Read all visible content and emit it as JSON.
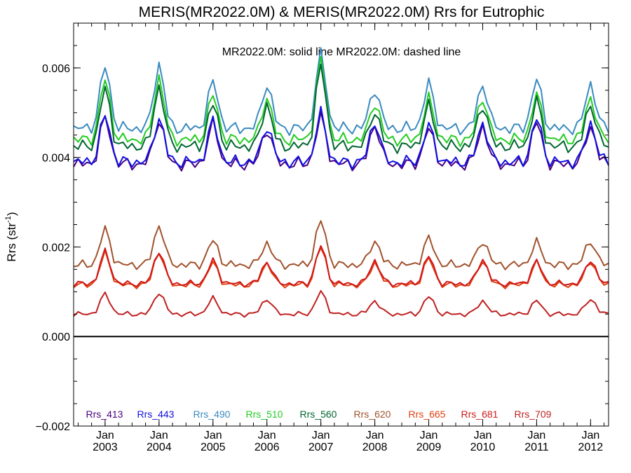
{
  "chart_data": {
    "type": "line",
    "title": "MERIS(MR2022.0M) & MERIS(MR2022.0M)  Rrs for Eutrophic",
    "annotation": "MR2022.0M: solid line   MR2022.0M: dashed line",
    "ylabel_main": "Rrs (str",
    "ylabel_sup": "-1",
    "ylabel_close": ")",
    "ylim": [
      -0.002,
      0.007
    ],
    "yticks": [
      {
        "value": -0.002,
        "label": "−0.002"
      },
      {
        "value": 0.0,
        "label": "0.000"
      },
      {
        "value": 0.002,
        "label": "0.002"
      },
      {
        "value": 0.004,
        "label": "0.004"
      },
      {
        "value": 0.006,
        "label": "0.006"
      }
    ],
    "xlim": [
      "2002-06",
      "2012-05"
    ],
    "xticks": [
      {
        "date": "2003-01",
        "month": "Jan",
        "year": "2003"
      },
      {
        "date": "2004-01",
        "month": "Jan",
        "year": "2004"
      },
      {
        "date": "2005-01",
        "month": "Jan",
        "year": "2005"
      },
      {
        "date": "2006-01",
        "month": "Jan",
        "year": "2006"
      },
      {
        "date": "2007-01",
        "month": "Jan",
        "year": "2007"
      },
      {
        "date": "2008-01",
        "month": "Jan",
        "year": "2008"
      },
      {
        "date": "2009-01",
        "month": "Jan",
        "year": "2009"
      },
      {
        "date": "2010-01",
        "month": "Jan",
        "year": "2010"
      },
      {
        "date": "2011-01",
        "month": "Jan",
        "year": "2011"
      },
      {
        "date": "2012-01",
        "month": "Jan",
        "year": "2012"
      }
    ],
    "grid": false,
    "zero_line": true,
    "legend_position": "bottom",
    "series": [
      {
        "name": "Rrs_413",
        "color": "#4b0082",
        "base": 0.00385,
        "amp": 0.001,
        "year_amp": [
          0.00105,
          0.001,
          0.0009,
          0.0008,
          0.00105,
          0.0009,
          0.0008,
          0.00085,
          0.00095,
          0.00085
        ],
        "wobble": 0.0001
      },
      {
        "name": "Rrs_443",
        "color": "#1010e0",
        "base": 0.0039,
        "amp": 0.001,
        "year_amp": [
          0.00105,
          0.001,
          0.00092,
          0.00082,
          0.00108,
          0.00092,
          0.00082,
          0.00088,
          0.00098,
          0.00088
        ],
        "wobble": 0.0001
      },
      {
        "name": "Rrs_490",
        "color": "#3a8ac0",
        "base": 0.00465,
        "amp": 0.0014,
        "year_amp": [
          0.0014,
          0.00145,
          0.00105,
          0.001,
          0.00165,
          0.0009,
          0.001,
          0.001,
          0.0011,
          0.001
        ],
        "wobble": 0.0001
      },
      {
        "name": "Rrs_510",
        "color": "#22cc22",
        "base": 0.0044,
        "amp": 0.00135,
        "year_amp": [
          0.00135,
          0.0014,
          0.001,
          0.00095,
          0.00175,
          0.00085,
          0.0009,
          0.00095,
          0.001,
          0.00095
        ],
        "wobble": 0.0001
      },
      {
        "name": "Rrs_560",
        "color": "#006630",
        "base": 0.00425,
        "amp": 0.0013,
        "year_amp": [
          0.0013,
          0.00135,
          0.00095,
          0.00095,
          0.0018,
          0.0008,
          0.0009,
          0.00095,
          0.001,
          0.00095
        ],
        "wobble": 0.0001
      },
      {
        "name": "Rrs_620",
        "color": "#a0522d",
        "base": 0.0016,
        "amp": 0.0007,
        "year_amp": [
          0.0008,
          0.0009,
          0.00055,
          0.0005,
          0.001,
          0.00055,
          0.0006,
          0.00055,
          0.0005,
          0.00055
        ],
        "wobble": 7e-05
      },
      {
        "name": "Rrs_665",
        "color": "#e04010",
        "base": 0.00115,
        "amp": 0.0006,
        "year_amp": [
          0.0007,
          0.00075,
          0.0005,
          0.0005,
          0.00085,
          0.0005,
          0.0006,
          0.00055,
          0.0005,
          0.00055
        ],
        "wobble": 5e-05
      },
      {
        "name": "Rrs_681",
        "color": "#d01818",
        "base": 0.00118,
        "amp": 0.0006,
        "year_amp": [
          0.00072,
          0.00075,
          0.00052,
          0.0005,
          0.00085,
          0.00052,
          0.00062,
          0.00055,
          0.0005,
          0.00055
        ],
        "wobble": 5e-05
      },
      {
        "name": "Rrs_709",
        "color": "#c02020",
        "base": 0.0005,
        "amp": 0.00035,
        "year_amp": [
          0.00045,
          0.0005,
          0.00035,
          0.00035,
          0.0005,
          0.0003,
          0.0004,
          0.0003,
          0.0003,
          0.00035
        ],
        "wobble": 4e-05
      }
    ]
  }
}
